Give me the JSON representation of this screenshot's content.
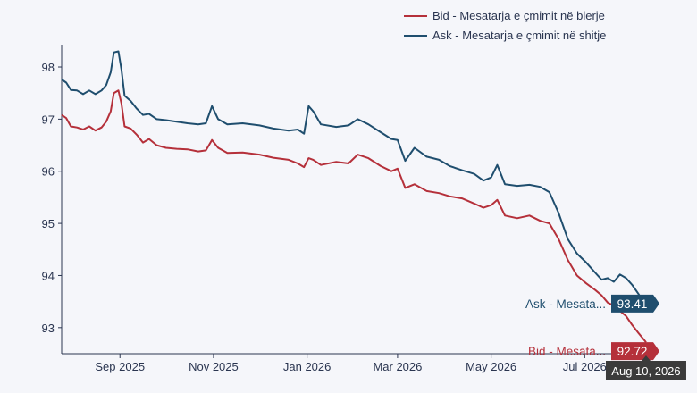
{
  "chart_data": {
    "type": "line",
    "xlabel": "",
    "ylabel": "",
    "x_range": [
      "2025-07-25",
      "2026-08-17"
    ],
    "ylim": [
      92.5,
      98.6
    ],
    "y_ticks": [
      93,
      94,
      95,
      96,
      97,
      98
    ],
    "x_ticks": [
      {
        "date": "2025-09-01",
        "label": "Sep 2025"
      },
      {
        "date": "2025-11-01",
        "label": "Nov 2025"
      },
      {
        "date": "2026-01-01",
        "label": "Jan 2026"
      },
      {
        "date": "2026-03-01",
        "label": "Mar 2026"
      },
      {
        "date": "2026-05-01",
        "label": "May 2026"
      },
      {
        "date": "2026-07-01",
        "label": "Jul 2026"
      }
    ],
    "grid": false,
    "legend_position": "top-right",
    "hover_label": "Aug 10, 2026",
    "series": [
      {
        "name": "Bid - Mesatarja e çmimit në blerje",
        "end_label": "Bid - Mesata...",
        "end_value": "92.72",
        "color": "#b5303a",
        "points": [
          [
            "2025-07-25",
            97.08
          ],
          [
            "2025-07-28",
            97.02
          ],
          [
            "2025-07-31",
            96.86
          ],
          [
            "2025-08-04",
            96.84
          ],
          [
            "2025-08-08",
            96.8
          ],
          [
            "2025-08-12",
            96.86
          ],
          [
            "2025-08-16",
            96.78
          ],
          [
            "2025-08-20",
            96.84
          ],
          [
            "2025-08-23",
            96.95
          ],
          [
            "2025-08-26",
            97.15
          ],
          [
            "2025-08-28",
            97.5
          ],
          [
            "2025-08-31",
            97.55
          ],
          [
            "2025-09-02",
            97.3
          ],
          [
            "2025-09-04",
            96.86
          ],
          [
            "2025-09-08",
            96.82
          ],
          [
            "2025-09-12",
            96.7
          ],
          [
            "2025-09-16",
            96.55
          ],
          [
            "2025-09-20",
            96.62
          ],
          [
            "2025-09-25",
            96.5
          ],
          [
            "2025-10-01",
            96.45
          ],
          [
            "2025-10-08",
            96.43
          ],
          [
            "2025-10-15",
            96.42
          ],
          [
            "2025-10-22",
            96.38
          ],
          [
            "2025-10-27",
            96.4
          ],
          [
            "2025-10-31",
            96.6
          ],
          [
            "2025-11-04",
            96.45
          ],
          [
            "2025-11-10",
            96.35
          ],
          [
            "2025-11-20",
            96.36
          ],
          [
            "2025-12-01",
            96.32
          ],
          [
            "2025-12-10",
            96.26
          ],
          [
            "2025-12-20",
            96.22
          ],
          [
            "2025-12-26",
            96.15
          ],
          [
            "2025-12-30",
            96.08
          ],
          [
            "2026-01-02",
            96.25
          ],
          [
            "2026-01-05",
            96.22
          ],
          [
            "2026-01-10",
            96.12
          ],
          [
            "2026-01-20",
            96.18
          ],
          [
            "2026-01-28",
            96.15
          ],
          [
            "2026-02-03",
            96.32
          ],
          [
            "2026-02-10",
            96.25
          ],
          [
            "2026-02-18",
            96.1
          ],
          [
            "2026-02-25",
            96.0
          ],
          [
            "2026-03-01",
            96.05
          ],
          [
            "2026-03-06",
            95.68
          ],
          [
            "2026-03-12",
            95.75
          ],
          [
            "2026-03-20",
            95.62
          ],
          [
            "2026-03-28",
            95.58
          ],
          [
            "2026-04-04",
            95.52
          ],
          [
            "2026-04-12",
            95.48
          ],
          [
            "2026-04-20",
            95.38
          ],
          [
            "2026-04-26",
            95.3
          ],
          [
            "2026-05-01",
            95.35
          ],
          [
            "2026-05-05",
            95.45
          ],
          [
            "2026-05-10",
            95.15
          ],
          [
            "2026-05-18",
            95.1
          ],
          [
            "2026-05-26",
            95.15
          ],
          [
            "2026-06-02",
            95.05
          ],
          [
            "2026-06-08",
            95.0
          ],
          [
            "2026-06-14",
            94.7
          ],
          [
            "2026-06-20",
            94.3
          ],
          [
            "2026-06-26",
            94.0
          ],
          [
            "2026-07-02",
            93.85
          ],
          [
            "2026-07-08",
            93.72
          ],
          [
            "2026-07-12",
            93.62
          ],
          [
            "2026-07-16",
            93.48
          ],
          [
            "2026-07-20",
            93.42
          ],
          [
            "2026-07-24",
            93.32
          ],
          [
            "2026-07-28",
            93.22
          ],
          [
            "2026-08-01",
            93.05
          ],
          [
            "2026-08-05",
            92.9
          ],
          [
            "2026-08-10",
            92.72
          ]
        ]
      },
      {
        "name": "Ask - Mesatarja e çmimit në shitje",
        "end_label": "Ask - Mesata...",
        "end_value": "93.41",
        "color": "#1f4e6e",
        "points": [
          [
            "2025-07-25",
            97.76
          ],
          [
            "2025-07-28",
            97.7
          ],
          [
            "2025-07-31",
            97.56
          ],
          [
            "2025-08-04",
            97.55
          ],
          [
            "2025-08-08",
            97.48
          ],
          [
            "2025-08-12",
            97.55
          ],
          [
            "2025-08-16",
            97.48
          ],
          [
            "2025-08-20",
            97.55
          ],
          [
            "2025-08-23",
            97.65
          ],
          [
            "2025-08-26",
            97.9
          ],
          [
            "2025-08-28",
            98.28
          ],
          [
            "2025-08-31",
            98.3
          ],
          [
            "2025-09-02",
            97.95
          ],
          [
            "2025-09-04",
            97.45
          ],
          [
            "2025-09-08",
            97.35
          ],
          [
            "2025-09-12",
            97.2
          ],
          [
            "2025-09-16",
            97.08
          ],
          [
            "2025-09-20",
            97.1
          ],
          [
            "2025-09-25",
            97.0
          ],
          [
            "2025-10-01",
            96.98
          ],
          [
            "2025-10-08",
            96.95
          ],
          [
            "2025-10-15",
            96.92
          ],
          [
            "2025-10-22",
            96.9
          ],
          [
            "2025-10-27",
            96.92
          ],
          [
            "2025-10-31",
            97.25
          ],
          [
            "2025-11-04",
            97.0
          ],
          [
            "2025-11-10",
            96.9
          ],
          [
            "2025-11-20",
            96.92
          ],
          [
            "2025-12-01",
            96.88
          ],
          [
            "2025-12-10",
            96.82
          ],
          [
            "2025-12-20",
            96.78
          ],
          [
            "2025-12-26",
            96.8
          ],
          [
            "2025-12-30",
            96.72
          ],
          [
            "2026-01-02",
            97.25
          ],
          [
            "2026-01-05",
            97.15
          ],
          [
            "2026-01-10",
            96.9
          ],
          [
            "2026-01-20",
            96.85
          ],
          [
            "2026-01-28",
            96.88
          ],
          [
            "2026-02-03",
            97.0
          ],
          [
            "2026-02-10",
            96.9
          ],
          [
            "2026-02-18",
            96.75
          ],
          [
            "2026-02-25",
            96.62
          ],
          [
            "2026-03-01",
            96.6
          ],
          [
            "2026-03-06",
            96.2
          ],
          [
            "2026-03-12",
            96.45
          ],
          [
            "2026-03-20",
            96.28
          ],
          [
            "2026-03-28",
            96.22
          ],
          [
            "2026-04-04",
            96.1
          ],
          [
            "2026-04-12",
            96.02
          ],
          [
            "2026-04-20",
            95.95
          ],
          [
            "2026-04-26",
            95.82
          ],
          [
            "2026-05-01",
            95.88
          ],
          [
            "2026-05-05",
            96.12
          ],
          [
            "2026-05-10",
            95.75
          ],
          [
            "2026-05-18",
            95.72
          ],
          [
            "2026-05-26",
            95.74
          ],
          [
            "2026-06-02",
            95.7
          ],
          [
            "2026-06-08",
            95.6
          ],
          [
            "2026-06-14",
            95.2
          ],
          [
            "2026-06-20",
            94.7
          ],
          [
            "2026-06-26",
            94.42
          ],
          [
            "2026-07-02",
            94.25
          ],
          [
            "2026-07-08",
            94.05
          ],
          [
            "2026-07-12",
            93.92
          ],
          [
            "2026-07-16",
            93.95
          ],
          [
            "2026-07-20",
            93.88
          ],
          [
            "2026-07-24",
            94.02
          ],
          [
            "2026-07-28",
            93.95
          ],
          [
            "2026-08-01",
            93.82
          ],
          [
            "2026-08-05",
            93.65
          ],
          [
            "2026-08-10",
            93.41
          ]
        ]
      }
    ]
  }
}
